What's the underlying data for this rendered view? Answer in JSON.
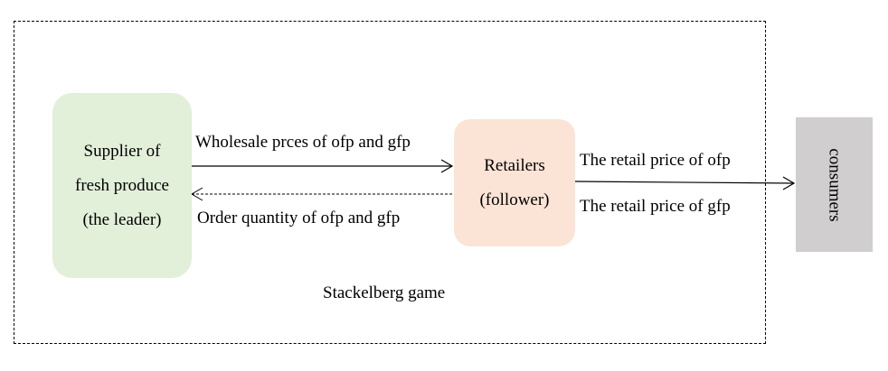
{
  "diagram": {
    "frame_caption": "Stackelberg game",
    "nodes": {
      "supplier": {
        "lines": [
          "Supplier of",
          "fresh produce",
          "(the leader)"
        ],
        "color": "#e2efd9"
      },
      "retailer": {
        "lines": [
          "Retailers",
          "(follower)"
        ],
        "color": "#fbe4d5"
      },
      "consumer": {
        "label": "consumers",
        "color": "#d0cece"
      }
    },
    "edges": {
      "wholesale": "Wholesale prces of ofp and gfp",
      "order": "Order quantity of ofp and gfp",
      "retail_ofp": "The retail price of ofp",
      "retail_gfp": "The retail price of gfp"
    }
  }
}
